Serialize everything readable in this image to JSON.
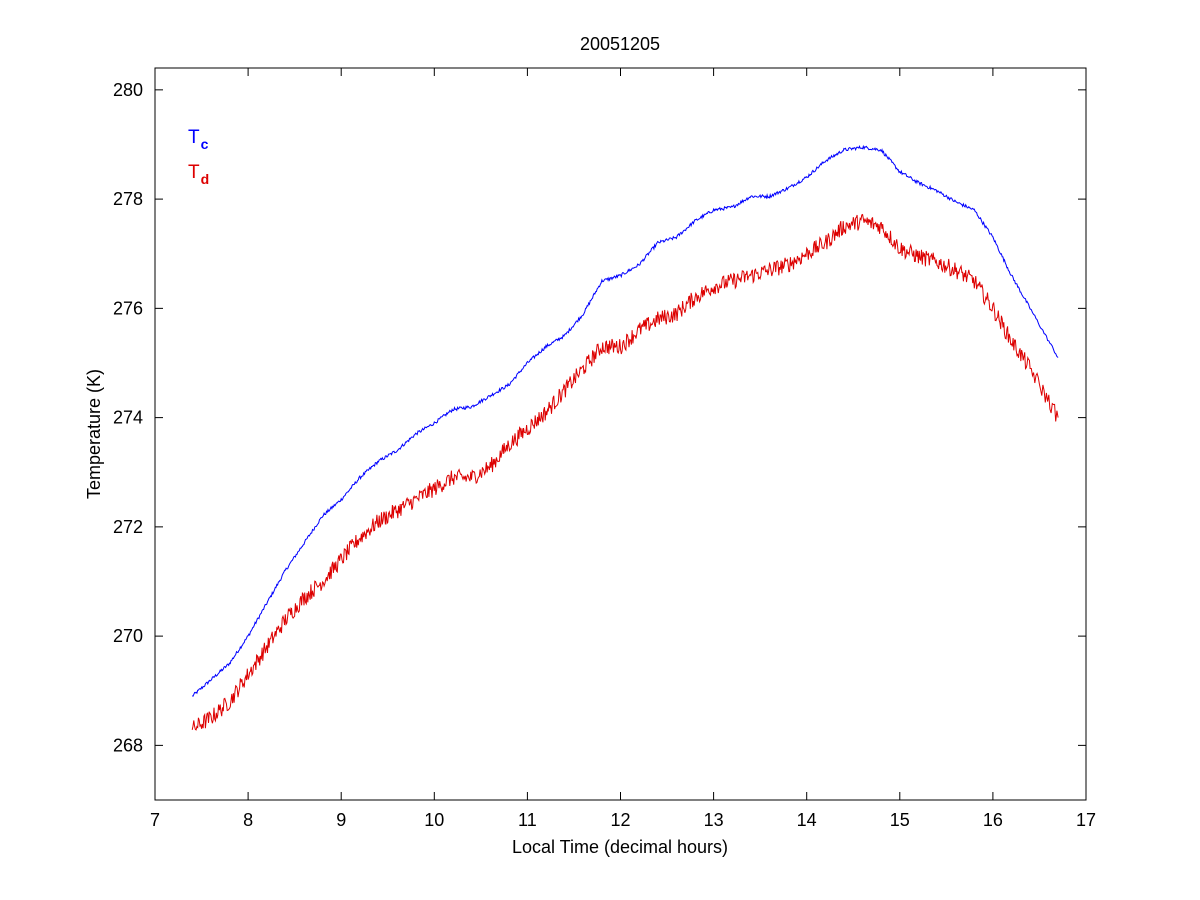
{
  "chart_data": {
    "type": "line",
    "title": "20051205",
    "xlabel": "Local Time (decimal hours)",
    "ylabel": "Temperature (K)",
    "xlim": [
      7,
      17
    ],
    "ylim": [
      267,
      280.4
    ],
    "xticks": [
      7,
      8,
      9,
      10,
      11,
      12,
      13,
      14,
      15,
      16,
      17
    ],
    "xtick_labels": [
      "7",
      "8",
      "9",
      "10",
      "11",
      "12",
      "13",
      "14",
      "15",
      "16",
      "17"
    ],
    "yticks": [
      268,
      270,
      272,
      274,
      276,
      278,
      280
    ],
    "ytick_labels": [
      "268",
      "270",
      "272",
      "274",
      "276",
      "278",
      "280"
    ],
    "grid": false,
    "legend_position": "top-left",
    "series": [
      {
        "name": "Tc",
        "legend_main": "T",
        "legend_sub": "c",
        "color": "#0000ff",
        "noise": 0.03,
        "x": [
          7.4,
          7.6,
          7.8,
          8.0,
          8.2,
          8.4,
          8.6,
          8.8,
          9.0,
          9.2,
          9.4,
          9.6,
          9.8,
          10.0,
          10.2,
          10.4,
          10.6,
          10.8,
          11.0,
          11.2,
          11.4,
          11.6,
          11.8,
          12.0,
          12.2,
          12.4,
          12.6,
          12.8,
          13.0,
          13.2,
          13.4,
          13.6,
          13.8,
          14.0,
          14.2,
          14.4,
          14.6,
          14.8,
          15.0,
          15.2,
          15.4,
          15.6,
          15.8,
          16.0,
          16.2,
          16.4,
          16.7
        ],
        "y": [
          268.9,
          269.2,
          269.5,
          270.0,
          270.6,
          271.2,
          271.7,
          272.2,
          272.5,
          272.9,
          273.2,
          273.4,
          273.7,
          273.9,
          274.15,
          274.2,
          274.4,
          274.6,
          275.0,
          275.3,
          275.5,
          275.9,
          276.5,
          276.6,
          276.8,
          277.2,
          277.3,
          277.6,
          277.8,
          277.85,
          278.05,
          278.05,
          278.2,
          278.4,
          278.7,
          278.9,
          278.95,
          278.9,
          278.5,
          278.3,
          278.15,
          277.95,
          277.8,
          277.3,
          276.6,
          276.0,
          275.1
        ]
      },
      {
        "name": "Td",
        "legend_main": "T",
        "legend_sub": "d",
        "color": "#dd0000",
        "noise": 0.15,
        "x": [
          7.4,
          7.6,
          7.8,
          8.0,
          8.2,
          8.4,
          8.6,
          8.8,
          9.0,
          9.2,
          9.4,
          9.6,
          9.8,
          10.0,
          10.2,
          10.4,
          10.6,
          10.8,
          11.0,
          11.2,
          11.4,
          11.6,
          11.8,
          12.0,
          12.2,
          12.4,
          12.6,
          12.8,
          13.0,
          13.2,
          13.4,
          13.6,
          13.8,
          14.0,
          14.2,
          14.4,
          14.6,
          14.8,
          15.0,
          15.2,
          15.4,
          15.6,
          15.8,
          16.0,
          16.2,
          16.4,
          16.7
        ],
        "y": [
          268.3,
          268.5,
          268.8,
          269.3,
          269.8,
          270.3,
          270.7,
          271.0,
          271.4,
          271.8,
          272.1,
          272.3,
          272.5,
          272.7,
          272.9,
          272.9,
          273.1,
          273.5,
          273.8,
          274.1,
          274.5,
          274.9,
          275.3,
          275.3,
          275.6,
          275.8,
          275.9,
          276.2,
          276.4,
          276.5,
          276.6,
          276.7,
          276.8,
          277.0,
          277.2,
          277.5,
          277.6,
          277.5,
          277.1,
          276.95,
          276.85,
          276.7,
          276.5,
          276.0,
          275.4,
          274.9,
          274.0
        ]
      }
    ]
  }
}
